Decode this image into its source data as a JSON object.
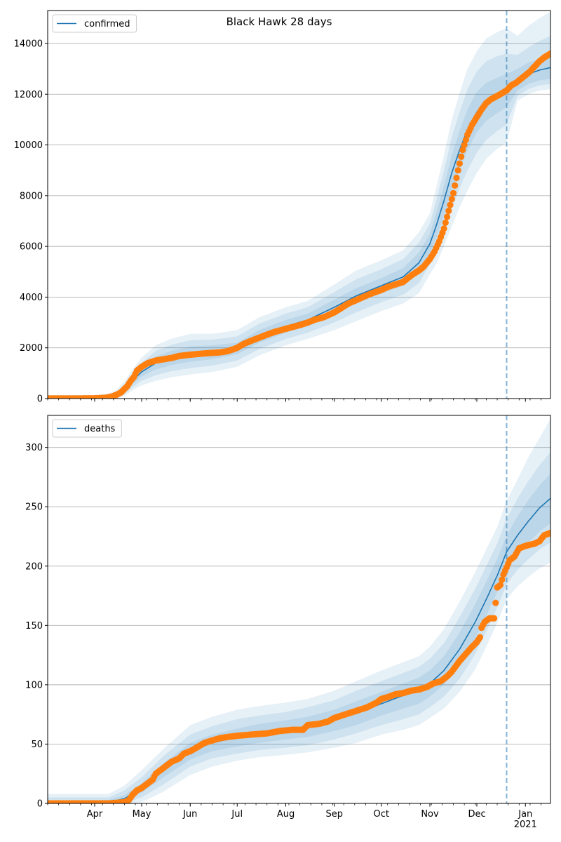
{
  "figure_title": "Black Hawk 28 days",
  "colors": {
    "line": "#1f77b4",
    "band": "#1f77b4",
    "points": "#ff7f0e",
    "grid": "#b0b0b0",
    "vline": "#1f77b4"
  },
  "x_ticks": [
    {
      "date": "2020-04-01",
      "label": "Apr"
    },
    {
      "date": "2020-05-01",
      "label": "May"
    },
    {
      "date": "2020-06-01",
      "label": "Jun"
    },
    {
      "date": "2020-07-01",
      "label": "Jul"
    },
    {
      "date": "2020-08-01",
      "label": "Aug"
    },
    {
      "date": "2020-09-01",
      "label": "Sep"
    },
    {
      "date": "2020-10-01",
      "label": "Oct"
    },
    {
      "date": "2020-11-01",
      "label": "Nov"
    },
    {
      "date": "2020-12-01",
      "label": "Dec"
    },
    {
      "date": "2021-01-01",
      "label": "Jan\n2021"
    }
  ],
  "chart_data": [
    {
      "type": "line",
      "legend": "confirmed",
      "legend_position": "upper-left",
      "grid": "horizontal",
      "xlim": [
        "2020-03-02",
        "2021-01-17"
      ],
      "ylim": [
        0,
        15300
      ],
      "yticks": [
        0,
        2000,
        4000,
        6000,
        8000,
        10000,
        12000,
        14000
      ],
      "forecast_start": "2020-12-20",
      "model": {
        "x": [
          "2020-03-02",
          "2020-04-01",
          "2020-04-10",
          "2020-04-15",
          "2020-04-20",
          "2020-04-25",
          "2020-05-01",
          "2020-05-10",
          "2020-05-20",
          "2020-06-01",
          "2020-06-15",
          "2020-07-01",
          "2020-07-15",
          "2020-08-01",
          "2020-08-15",
          "2020-09-01",
          "2020-09-15",
          "2020-10-01",
          "2020-10-15",
          "2020-10-25",
          "2020-11-01",
          "2020-11-05",
          "2020-11-10",
          "2020-11-15",
          "2020-11-20",
          "2020-11-25",
          "2020-12-01",
          "2020-12-07",
          "2020-12-14",
          "2020-12-20",
          "2020-12-27",
          "2021-01-03",
          "2021-01-10",
          "2021-01-17"
        ],
        "y": [
          20,
          20,
          50,
          130,
          350,
          700,
          1050,
          1400,
          1600,
          1750,
          1800,
          1950,
          2450,
          2850,
          3100,
          3600,
          4050,
          4450,
          4800,
          5350,
          6100,
          6800,
          7800,
          8900,
          9800,
          10600,
          11300,
          11700,
          11950,
          12150,
          12550,
          12800,
          12950,
          13050
        ],
        "bands": [
          {
            "lower": [
              0,
              0,
              20,
              80,
              260,
              560,
              870,
              1150,
              1320,
              1450,
              1550,
              1750,
              2200,
              2600,
              2850,
              3300,
              3750,
              4150,
              4450,
              4950,
              5700,
              6300,
              7200,
              8200,
              9050,
              9800,
              10500,
              10950,
              11250,
              11500,
              12150,
              12400,
              12550,
              12600
            ],
            "upper": [
              60,
              60,
              100,
              200,
              450,
              840,
              1230,
              1650,
              1880,
              2050,
              2100,
              2200,
              2700,
              3100,
              3350,
              3900,
              4350,
              4750,
              5150,
              5750,
              6500,
              7300,
              8400,
              9600,
              10550,
              11400,
              12100,
              12450,
              12650,
              12800,
              13000,
              13250,
              13400,
              13500
            ]
          },
          {
            "lower": [
              0,
              0,
              0,
              40,
              180,
              440,
              700,
              920,
              1080,
              1200,
              1300,
              1500,
              1950,
              2350,
              2600,
              3000,
              3400,
              3800,
              4100,
              4550,
              5300,
              5800,
              6600,
              7500,
              8300,
              9000,
              9700,
              10200,
              10550,
              10800,
              11950,
              12200,
              12350,
              12400
            ],
            "upper": [
              100,
              100,
              150,
              270,
              560,
              980,
              1420,
              1880,
              2120,
              2300,
              2320,
              2450,
              2950,
              3350,
              3600,
              4200,
              4700,
              5100,
              5500,
              6150,
              6900,
              7800,
              9000,
              10300,
              11300,
              12200,
              12900,
              13300,
              13500,
              13600,
              13550,
              13850,
              14100,
              14300
            ]
          },
          {
            "lower": [
              0,
              0,
              0,
              0,
              100,
              320,
              520,
              700,
              840,
              950,
              1050,
              1250,
              1700,
              2100,
              2350,
              2700,
              3050,
              3450,
              3750,
              4150,
              4900,
              5300,
              6000,
              6800,
              7550,
              8200,
              8900,
              9450,
              9850,
              10100,
              11750,
              12000,
              12150,
              12200
            ],
            "upper": [
              140,
              140,
              200,
              340,
              680,
              1130,
              1620,
              2100,
              2360,
              2550,
              2550,
              2700,
              3200,
              3600,
              3850,
              4500,
              5050,
              5450,
              5850,
              6550,
              7300,
              8300,
              9600,
              11000,
              12050,
              13000,
              13700,
              14200,
              14450,
              14600,
              14300,
              14700,
              15000,
              15250
            ]
          }
        ]
      },
      "observed": {
        "x": [
          "2020-03-02",
          "2020-03-20",
          "2020-04-01",
          "2020-04-08",
          "2020-04-12",
          "2020-04-15",
          "2020-04-18",
          "2020-04-20",
          "2020-04-22",
          "2020-04-24",
          "2020-04-26",
          "2020-04-28",
          "2020-05-01",
          "2020-05-05",
          "2020-05-10",
          "2020-05-15",
          "2020-05-20",
          "2020-05-25",
          "2020-06-01",
          "2020-06-10",
          "2020-06-20",
          "2020-06-25",
          "2020-07-01",
          "2020-07-05",
          "2020-07-10",
          "2020-07-15",
          "2020-07-20",
          "2020-07-25",
          "2020-08-01",
          "2020-08-10",
          "2020-08-15",
          "2020-08-20",
          "2020-08-25",
          "2020-09-01",
          "2020-09-05",
          "2020-09-10",
          "2020-09-15",
          "2020-09-20",
          "2020-09-25",
          "2020-10-01",
          "2020-10-05",
          "2020-10-10",
          "2020-10-15",
          "2020-10-20",
          "2020-10-25",
          "2020-10-28",
          "2020-11-01",
          "2020-11-04",
          "2020-11-07",
          "2020-11-10",
          "2020-11-13",
          "2020-11-16",
          "2020-11-19",
          "2020-11-22",
          "2020-11-25",
          "2020-11-28",
          "2020-12-01",
          "2020-12-04",
          "2020-12-07",
          "2020-12-10",
          "2020-12-13",
          "2020-12-16",
          "2020-12-20",
          "2020-12-23",
          "2020-12-26",
          "2020-12-29",
          "2021-01-01",
          "2021-01-04",
          "2021-01-07",
          "2021-01-10",
          "2021-01-13",
          "2021-01-17"
        ],
        "y": [
          5,
          5,
          10,
          30,
          80,
          150,
          250,
          380,
          500,
          700,
          850,
          1100,
          1250,
          1400,
          1500,
          1550,
          1600,
          1680,
          1730,
          1780,
          1820,
          1870,
          2000,
          2150,
          2280,
          2400,
          2520,
          2630,
          2750,
          2900,
          3000,
          3120,
          3200,
          3400,
          3550,
          3750,
          3880,
          4020,
          4150,
          4280,
          4400,
          4500,
          4600,
          4850,
          5050,
          5200,
          5500,
          5800,
          6200,
          6700,
          7400,
          8100,
          9000,
          9800,
          10400,
          10800,
          11100,
          11400,
          11650,
          11800,
          11900,
          12000,
          12150,
          12350,
          12450,
          12600,
          12750,
          12900,
          13100,
          13300,
          13450,
          13600
        ]
      }
    },
    {
      "type": "line",
      "legend": "deaths",
      "legend_position": "upper-left",
      "grid": "horizontal",
      "xlim": [
        "2020-03-02",
        "2021-01-17"
      ],
      "ylim": [
        0,
        327
      ],
      "yticks": [
        0,
        50,
        100,
        150,
        200,
        250,
        300
      ],
      "forecast_start": "2020-12-20",
      "model": {
        "x": [
          "2020-03-02",
          "2020-04-10",
          "2020-04-20",
          "2020-05-01",
          "2020-05-15",
          "2020-06-01",
          "2020-06-15",
          "2020-07-01",
          "2020-07-15",
          "2020-08-01",
          "2020-08-15",
          "2020-09-01",
          "2020-09-15",
          "2020-10-01",
          "2020-10-15",
          "2020-10-25",
          "2020-11-01",
          "2020-11-10",
          "2020-11-20",
          "2020-11-30",
          "2020-12-07",
          "2020-12-14",
          "2020-12-20",
          "2020-12-27",
          "2021-01-03",
          "2021-01-10",
          "2021-01-17"
        ],
        "y": [
          0,
          1,
          4,
          13,
          28,
          44,
          51,
          56,
          59,
          62,
          65,
          70,
          76,
          84,
          91,
          95,
          101,
          112,
          130,
          153,
          172,
          192,
          212,
          226,
          238,
          249,
          257
        ],
        "bands": [
          {
            "lower": [
              0,
              0,
              2,
              9,
              22,
              37,
              44,
              48,
              51,
              54,
              56,
              61,
              66,
              74,
              80,
              84,
              90,
              100,
              117,
              139,
              158,
              178,
              198,
              210,
              220,
              229,
              236
            ],
            "upper": [
              2,
              3,
              7,
              17,
              34,
              51,
              58,
              63,
              67,
              70,
              73,
              79,
              86,
              94,
              101,
              106,
              112,
              124,
              144,
              168,
              187,
              206,
              226,
              242,
              256,
              268,
              278
            ]
          },
          {
            "lower": [
              0,
              0,
              0,
              5,
              16,
              31,
              38,
              42,
              45,
              47,
              49,
              54,
              59,
              66,
              71,
              75,
              81,
              90,
              105,
              126,
              145,
              165,
              185,
              197,
              206,
              214,
              220
            ],
            "upper": [
              5,
              5,
              11,
              22,
              40,
              58,
              65,
              71,
              74,
              77,
              81,
              87,
              95,
              103,
              110,
              115,
              122,
              135,
              157,
              181,
              200,
              219,
              240,
              257,
              272,
              285,
              296
            ]
          },
          {
            "lower": [
              0,
              0,
              0,
              1,
              10,
              24,
              31,
              36,
              39,
              41,
              43,
              47,
              51,
              58,
              62,
              66,
              72,
              80,
              94,
              113,
              132,
              152,
              172,
              183,
              191,
              198,
              203
            ],
            "upper": [
              8,
              8,
              15,
              28,
              46,
              66,
              73,
              79,
              82,
              85,
              88,
              95,
              103,
              112,
              119,
              124,
              132,
              147,
              170,
              195,
              214,
              233,
              255,
              273,
              292,
              308,
              324
            ]
          }
        ]
      },
      "observed": {
        "x": [
          "2020-03-02",
          "2020-04-10",
          "2020-04-20",
          "2020-04-23",
          "2020-04-25",
          "2020-04-28",
          "2020-05-01",
          "2020-05-05",
          "2020-05-08",
          "2020-05-10",
          "2020-05-13",
          "2020-05-15",
          "2020-05-20",
          "2020-05-25",
          "2020-05-28",
          "2020-06-01",
          "2020-06-05",
          "2020-06-10",
          "2020-06-15",
          "2020-06-20",
          "2020-06-25",
          "2020-07-01",
          "2020-07-10",
          "2020-07-20",
          "2020-07-28",
          "2020-08-05",
          "2020-08-12",
          "2020-08-15",
          "2020-08-22",
          "2020-08-28",
          "2020-09-01",
          "2020-09-08",
          "2020-09-15",
          "2020-09-22",
          "2020-09-28",
          "2020-10-01",
          "2020-10-06",
          "2020-10-10",
          "2020-10-15",
          "2020-10-20",
          "2020-10-25",
          "2020-10-30",
          "2020-11-03",
          "2020-11-08",
          "2020-11-12",
          "2020-11-15",
          "2020-11-20",
          "2020-11-24",
          "2020-11-28",
          "2020-12-01",
          "2020-12-03",
          "2020-12-04",
          "2020-12-06",
          "2020-12-09",
          "2020-12-11",
          "2020-12-12",
          "2020-12-14",
          "2020-12-16",
          "2020-12-18",
          "2020-12-20",
          "2020-12-22",
          "2020-12-25",
          "2020-12-28",
          "2021-01-01",
          "2021-01-04",
          "2021-01-07",
          "2021-01-10",
          "2021-01-13",
          "2021-01-17"
        ],
        "y": [
          0,
          0,
          1,
          3,
          7,
          11,
          13,
          17,
          20,
          25,
          28,
          30,
          35,
          38,
          42,
          44,
          47,
          51,
          53,
          55,
          56,
          57,
          58,
          59,
          61,
          62,
          62,
          66,
          67,
          69,
          72,
          75,
          78,
          81,
          85,
          88,
          90,
          92,
          93,
          95,
          96,
          98,
          101,
          103,
          107,
          111,
          120,
          126,
          132,
          136,
          140,
          148,
          153,
          156,
          156,
          156,
          182,
          184,
          193,
          199,
          205,
          208,
          215,
          217,
          218,
          219,
          221,
          226,
          228
        ]
      }
    }
  ]
}
